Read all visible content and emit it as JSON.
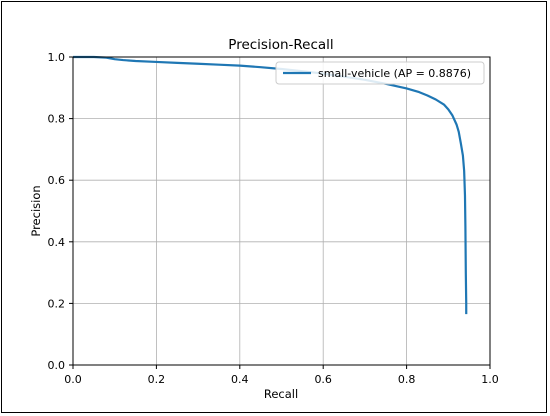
{
  "chart_data": {
    "type": "line",
    "title": "Precision-Recall",
    "xlabel": "Recall",
    "ylabel": "Precision",
    "xlim": [
      0.0,
      1.0
    ],
    "ylim": [
      0.0,
      1.0
    ],
    "grid": true,
    "legend_position": "top-right",
    "x_ticks": [
      "0.0",
      "0.2",
      "0.4",
      "0.6",
      "0.8",
      "1.0"
    ],
    "y_ticks": [
      "0.0",
      "0.2",
      "0.4",
      "0.6",
      "0.8",
      "1.0"
    ],
    "series": [
      {
        "name": "small-vehicle (AP = 0.8876)",
        "color": "#1f77b4",
        "x": [
          0.0,
          0.02,
          0.05,
          0.08,
          0.1,
          0.12,
          0.15,
          0.2,
          0.25,
          0.3,
          0.35,
          0.4,
          0.45,
          0.5,
          0.55,
          0.6,
          0.65,
          0.7,
          0.75,
          0.8,
          0.83,
          0.85,
          0.87,
          0.89,
          0.9,
          0.91,
          0.92,
          0.925,
          0.93,
          0.935,
          0.938,
          0.94,
          0.941,
          0.942,
          0.943,
          0.943
        ],
        "y": [
          1.0,
          1.0,
          1.0,
          0.998,
          0.993,
          0.99,
          0.987,
          0.984,
          0.981,
          0.978,
          0.975,
          0.972,
          0.967,
          0.961,
          0.954,
          0.946,
          0.936,
          0.926,
          0.913,
          0.898,
          0.886,
          0.875,
          0.862,
          0.845,
          0.83,
          0.81,
          0.78,
          0.757,
          0.72,
          0.68,
          0.63,
          0.55,
          0.45,
          0.3,
          0.2,
          0.165
        ]
      }
    ]
  }
}
